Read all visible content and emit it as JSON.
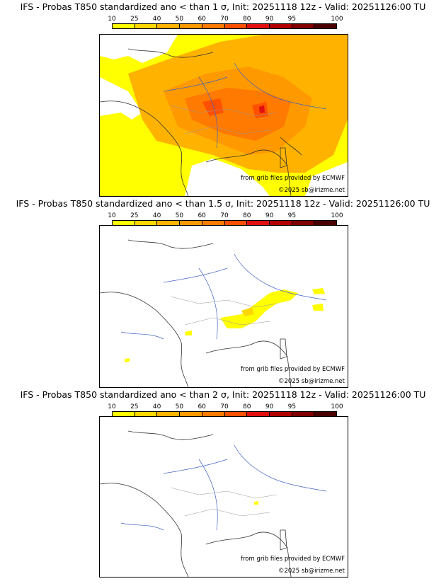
{
  "colorbar": {
    "labels": [
      "10",
      "25",
      "40",
      "50",
      "60",
      "70",
      "80",
      "90",
      "95",
      "100"
    ],
    "colors": [
      "#ffff00",
      "#ffd700",
      "#ffb300",
      "#ff9900",
      "#ff7a00",
      "#ff5000",
      "#e01010",
      "#b00000",
      "#800000",
      "#4a0000"
    ]
  },
  "credits": {
    "source": "from grib files provided by ECMWF",
    "copyright": "©2025 sb@irizme.net"
  },
  "panels": [
    {
      "title": "IFS - Probas T850  standardized ano < than 1 σ, Init: 20251118 12z - Valid: 20251126:00 TU"
    },
    {
      "title": "IFS - Probas T850  standardized ano < than 1.5 σ, Init: 20251118 12z - Valid: 20251126:00 TU"
    },
    {
      "title": "IFS - Probas T850  standardized ano < than 2 σ, Init: 20251118 12z - Valid: 20251126:00 TU"
    }
  ]
}
